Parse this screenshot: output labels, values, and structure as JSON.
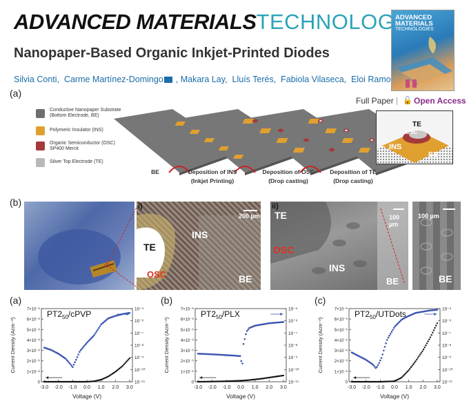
{
  "header": {
    "journal_bold": "ADVANCED MATERIALS",
    "journal_light": "TECHNOLOGIES",
    "title": "Nanopaper-Based Organic Inkjet-Printed Diodes",
    "authors": [
      "Silvia Conti,",
      "Carme Martínez-Domingo",
      "Makara Lay,",
      "Lluís Terés,",
      "Fabiola Vilaseca,",
      "Eloi Ramon"
    ],
    "cover_title": "ADVANCED MATERIALS",
    "cover_subtitle": "TECHNOLOGIES",
    "article_type": "Full Paper",
    "access": "Open Access"
  },
  "figure_a": {
    "label": "(a)",
    "legend": [
      {
        "text": "Conductive Nanopaper Substrate (Bottom Electrode, BE)",
        "color": "#6e6e6e"
      },
      {
        "text": "Polymeric Insulator (INS)",
        "color": "#e0a030"
      },
      {
        "text": "Organic Semiconductor (OSC) SP400 Merck",
        "color": "#a53a3a"
      },
      {
        "text": "Silver Top Electrode (TE)",
        "color": "#b8b8b8"
      }
    ],
    "stages": [
      {
        "label": "BE",
        "sub": ""
      },
      {
        "label": "Deposition of INS",
        "sub": "(Inkjet Printing)"
      },
      {
        "label": "Deposition of OSC",
        "sub": "(Drop casting)"
      },
      {
        "label": "Deposition of TE",
        "sub": "(Drop casting)"
      }
    ],
    "zoom_labels": {
      "te": "TE",
      "osc": "OSC",
      "ins": "INS",
      "be": "BE"
    }
  },
  "figure_b": {
    "label": "(b)",
    "panel_i": {
      "label": "i)",
      "scale": "200 µm",
      "te": "TE",
      "ins": "INS",
      "osc": "OSC",
      "be": "BE"
    },
    "panel_ii": {
      "label": "ii)",
      "scale": "100 µm",
      "te": "TE",
      "osc": "OSC",
      "ins": "INS",
      "be": "BE"
    },
    "panel_iii": {
      "scale": "100 µm",
      "be": "BE"
    }
  },
  "chart_data": [
    {
      "panel": "(a)",
      "type": "scatter",
      "title_pre": "PT2",
      "title_sub": "50",
      "title_post": "/cPVP",
      "xlabel": "Voltage (V)",
      "ylabel": "Current Density (Acm⁻²)",
      "xticks": [
        "-3.0",
        "-2.0",
        "-1.0",
        "0.0",
        "1.0",
        "2.0",
        "3.0"
      ],
      "yticks_left": [
        "0",
        "1×10⁻⁶",
        "2×10⁻⁶",
        "3×10⁻⁶",
        "4×10⁻⁶",
        "5×10⁻⁶",
        "6×10⁻⁶",
        "7×10⁻⁶"
      ],
      "yticks_right": [
        "10⁻¹¹",
        "10⁻¹⁰",
        "10⁻⁹",
        "10⁻⁸",
        "10⁻⁷",
        "10⁻⁶",
        "10⁻⁵"
      ],
      "xlim": [
        -3.2,
        3.2
      ],
      "ylim_left": [
        0,
        7e-06
      ],
      "ylim_right_log": [
        -11,
        -5
      ],
      "linear_series": {
        "x": [
          -3,
          -2,
          -1,
          0,
          0.5,
          1,
          1.5,
          2,
          2.5,
          3
        ],
        "y": [
          0,
          0,
          0,
          0,
          5e-08,
          2e-07,
          5e-07,
          9.5e-07,
          1.5e-06,
          2.25e-06
        ]
      },
      "log_series": {
        "x": [
          -3,
          -2.5,
          -2,
          -1.5,
          -1.2,
          -1,
          -0.8,
          -0.5,
          0,
          0.5,
          1,
          1.5,
          2,
          2.5,
          3
        ],
        "y": [
          -8.2,
          -8.4,
          -8.7,
          -9.1,
          -9.5,
          -9.8,
          -9.3,
          -8.5,
          -7.8,
          -7.2,
          -6.3,
          -5.8,
          -5.6,
          -5.45,
          -5.35
        ]
      }
    },
    {
      "panel": "(b)",
      "type": "scatter",
      "title_pre": "PT2",
      "title_sub": "50",
      "title_post": "/PLX",
      "xlabel": "Voltage (V)",
      "ylabel": "Current Density (Acm⁻²)",
      "xticks": [
        "-3.0",
        "-2.0",
        "-1.0",
        "0.0",
        "1.0",
        "2.0",
        "3.0"
      ],
      "yticks_left": [
        "0",
        "1×10⁻⁶",
        "2×10⁻⁶",
        "3×10⁻⁶",
        "4×10⁻⁶",
        "5×10⁻⁶",
        "6×10⁻⁶",
        "7×10⁻⁶"
      ],
      "yticks_right": [
        "10⁻¹¹",
        "10⁻¹⁰",
        "10⁻⁹",
        "10⁻⁸",
        "10⁻⁷",
        "10⁻⁶",
        "10⁻⁵"
      ],
      "xlim": [
        -3.2,
        3.2
      ],
      "ylim_left": [
        0,
        7e-06
      ],
      "ylim_right_log": [
        -11,
        -5
      ],
      "linear_series": {
        "x": [
          -3,
          -2,
          -1,
          0,
          0.5,
          1,
          1.5,
          2,
          2.5,
          3
        ],
        "y": [
          0,
          2e-08,
          5e-08,
          1e-07,
          1.5e-07,
          2.2e-07,
          3e-07,
          4e-07,
          5e-07,
          6e-07
        ]
      },
      "log_series": {
        "x": [
          -3,
          -2.5,
          -2,
          -1.5,
          -1,
          -0.5,
          0,
          0.1,
          0.2,
          0.4,
          0.6,
          1,
          1.5,
          2,
          2.5,
          3
        ],
        "y": [
          -8.7,
          -8.72,
          -8.75,
          -8.78,
          -8.82,
          -8.85,
          -8.9,
          -9.9,
          -7.9,
          -6.9,
          -6.6,
          -6.4,
          -6.3,
          -6.2,
          -6.15,
          -6.1
        ]
      }
    },
    {
      "panel": "(c)",
      "type": "scatter",
      "title_pre": "PT2",
      "title_sub": "50",
      "title_post": "/UTDots",
      "xlabel": "Voltage (V)",
      "ylabel": "Current Density (Acm⁻²)",
      "xticks": [
        "-3.0",
        "-2.0",
        "-1.0",
        "0.0",
        "1.0",
        "2.0",
        "3.0"
      ],
      "yticks_left": [
        "0",
        "1×10⁻⁶",
        "2×10⁻⁶",
        "3×10⁻⁶",
        "4×10⁻⁶",
        "5×10⁻⁶",
        "6×10⁻⁶",
        "7×10⁻⁶"
      ],
      "yticks_right": [
        "10⁻¹¹",
        "10⁻¹⁰",
        "10⁻⁹",
        "10⁻⁸",
        "10⁻⁷",
        "10⁻⁶",
        "10⁻⁵"
      ],
      "xlim": [
        -3.2,
        3.2
      ],
      "ylim_left": [
        0,
        7e-06
      ],
      "ylim_right_log": [
        -11,
        -5
      ],
      "linear_series": {
        "x": [
          -3,
          -2,
          -1,
          0,
          0.5,
          1,
          1.5,
          2,
          2.5,
          3
        ],
        "y": [
          0,
          0,
          0,
          5e-08,
          4e-07,
          1.1e-06,
          2e-06,
          3e-06,
          4.2e-06,
          5.6e-06
        ]
      },
      "log_series": {
        "x": [
          -3,
          -2.5,
          -2,
          -1.5,
          -1.3,
          -1.1,
          -0.9,
          -0.7,
          -0.5,
          0,
          0.5,
          1,
          1.5,
          2,
          2.5,
          3
        ],
        "y": [
          -8.6,
          -8.9,
          -9.2,
          -9.6,
          -9.9,
          -9.5,
          -9.0,
          -8.2,
          -7.5,
          -6.5,
          -5.9,
          -5.6,
          -5.35,
          -5.25,
          -5.15,
          -5.1
        ]
      }
    }
  ]
}
